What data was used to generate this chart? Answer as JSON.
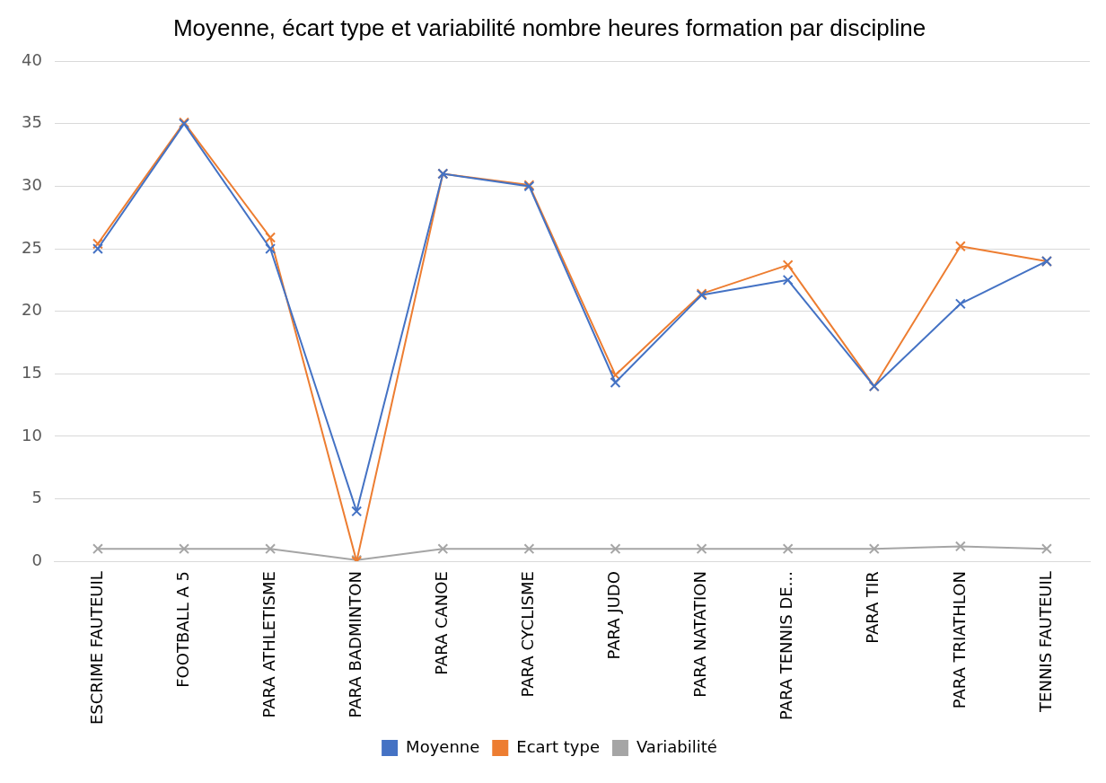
{
  "chart_data": {
    "type": "line",
    "title": "Moyenne, écart type et variabilité nombre heures formation par discipline",
    "categories": [
      "ESCRIME FAUTEUIL",
      "FOOTBALL A 5",
      "PARA ATHLETISME",
      "PARA BADMINTON",
      "PARA CANOE",
      "PARA CYCLISME",
      "PARA JUDO",
      "PARA NATATION",
      "PARA TENNIS DE...",
      "PARA TIR",
      "PARA TRIATHLON",
      "TENNIS FAUTEUIL"
    ],
    "series": [
      {
        "name": "Moyenne",
        "color": "#4472c4",
        "values": [
          25,
          35,
          25,
          4,
          31,
          30,
          14.3,
          21.3,
          22.5,
          14,
          20.6,
          24
        ]
      },
      {
        "name": "Ecart type",
        "color": "#ed7d31",
        "values": [
          25.4,
          35.1,
          25.9,
          0,
          31,
          30.1,
          14.9,
          21.4,
          23.7,
          14,
          25.2,
          24
        ]
      },
      {
        "name": "Variabilité",
        "color": "#a5a5a5",
        "values": [
          1,
          1,
          1,
          0.1,
          1,
          1,
          1,
          1,
          1,
          1,
          1.2,
          1
        ]
      }
    ],
    "ylim": [
      0,
      40
    ],
    "yticks": [
      0,
      5,
      10,
      15,
      20,
      25,
      30,
      35,
      40
    ],
    "grid": "y",
    "legend": "bottom",
    "marker": "cross",
    "line_style": "solid"
  }
}
